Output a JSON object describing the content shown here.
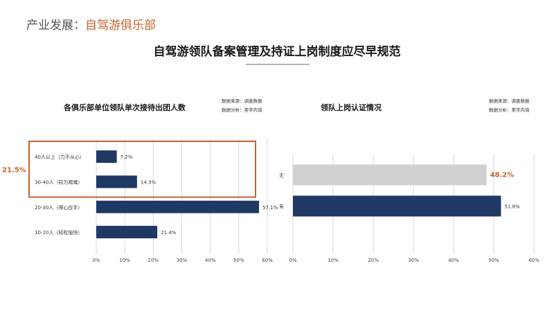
{
  "header": {
    "prefix": "产业发展：",
    "highlight": "自驾游俱乐部"
  },
  "title": "自驾游领队备案管理及持证上岗制度应尽早规范",
  "colors": {
    "accent": "#c8602a",
    "bar": "#1f3864",
    "bar_highlight": "#d0d0d0",
    "gridline": "#d9d9d9"
  },
  "chart_data": [
    {
      "type": "bar",
      "orientation": "horizontal",
      "title": "各俱乐部单位领队单次接待出团人数",
      "source_lines": [
        "数据来源：调查数据",
        "数据分析：美宇内询"
      ],
      "categories": [
        "40人以上（力不从心）",
        "30-40人（较为艰难）",
        "20-30人（得心应手）",
        "10-20人（轻松愉快）"
      ],
      "values": [
        7.2,
        14.3,
        57.1,
        21.4
      ],
      "value_labels": [
        "7.2%",
        "14.3%",
        "57.1%",
        "21.4%"
      ],
      "xlim": [
        0,
        60
      ],
      "ticks": [
        "0%",
        "10%",
        "20%",
        "30%",
        "40%",
        "50%",
        "60%"
      ],
      "grid": true,
      "callout": {
        "label": "21.5%",
        "covers": [
          "40人以上（力不从心）",
          "30-40人（较为艰难）"
        ]
      }
    },
    {
      "type": "bar",
      "orientation": "horizontal",
      "title": "领队上岗认证情况",
      "source_lines": [
        "数据来源：调查数据",
        "数据分析：美宇内询"
      ],
      "categories": [
        "无",
        "有"
      ],
      "values": [
        48.2,
        51.8
      ],
      "value_labels": [
        "48.2%",
        "51.8%"
      ],
      "highlight": "无",
      "xlim": [
        0,
        60
      ],
      "ticks": [
        "0%",
        "10%",
        "20%",
        "30%",
        "40%",
        "50%",
        "60%"
      ],
      "grid": true
    }
  ]
}
